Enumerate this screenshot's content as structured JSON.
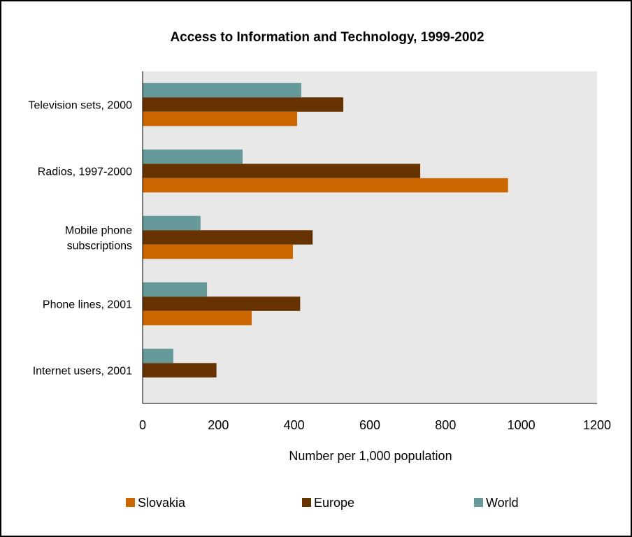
{
  "colors": {
    "slovakia": "#CC6600",
    "europe": "#663300",
    "world": "#669999",
    "plot_bg": "#E8E8E8"
  },
  "chart_data": {
    "type": "bar",
    "orientation": "horizontal",
    "title": "Access to Information and Technology, 1999-2002",
    "xlabel": "Number per 1,000 population",
    "ylabel": "",
    "xlim": [
      0,
      1200
    ],
    "xticks": [
      "0",
      "200",
      "400",
      "600",
      "800",
      "1000",
      "1200"
    ],
    "categories": [
      [
        "Television sets, 2000"
      ],
      [
        "Radios, 1997-2000"
      ],
      [
        "Mobile phone",
        "subscriptions"
      ],
      [
        "Phone lines, 2001"
      ],
      [
        "Internet users, 2001"
      ]
    ],
    "series": [
      {
        "name": "Slovakia",
        "color": "#CC6600",
        "values": [
          408,
          965,
          397,
          288,
          null
        ]
      },
      {
        "name": "Europe",
        "color": "#663300",
        "values": [
          530,
          733,
          449,
          416,
          195
        ]
      },
      {
        "name": "World",
        "color": "#669999",
        "values": [
          419,
          264,
          153,
          170,
          81
        ]
      }
    ],
    "grid": false,
    "legend_position": "bottom"
  }
}
